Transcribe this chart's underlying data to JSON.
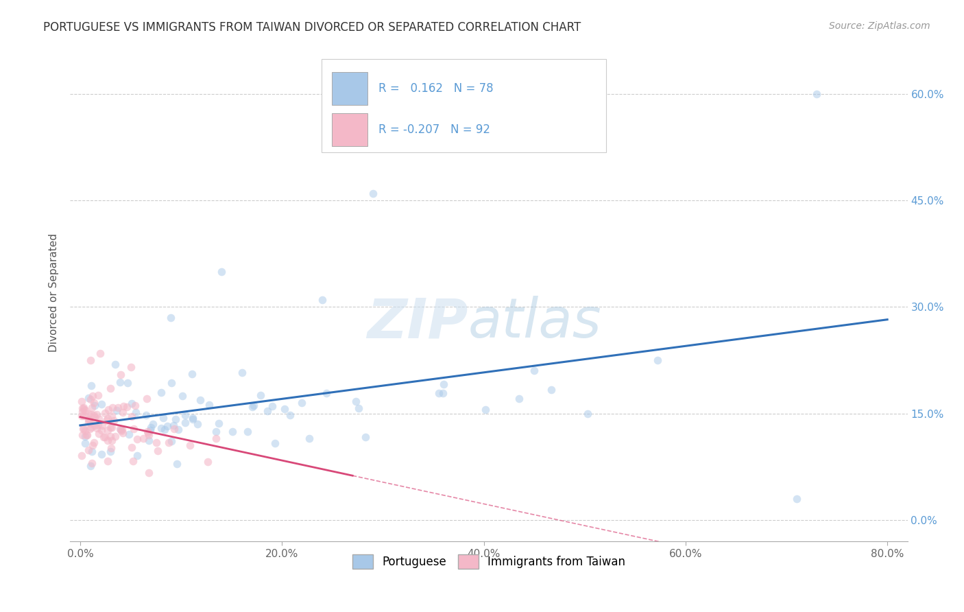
{
  "title": "PORTUGUESE VS IMMIGRANTS FROM TAIWAN DIVORCED OR SEPARATED CORRELATION CHART",
  "source": "Source: ZipAtlas.com",
  "ylabel": "Divorced or Separated",
  "blue_R": 0.162,
  "blue_N": 78,
  "pink_R": -0.207,
  "pink_N": 92,
  "blue_color": "#a8c8e8",
  "pink_color": "#f4b8c8",
  "blue_line_color": "#3070b8",
  "pink_line_color": "#d84878",
  "blue_label": "Portuguese",
  "pink_label": "Immigrants from Taiwan",
  "xlim": [
    -0.01,
    0.82
  ],
  "ylim": [
    -0.03,
    0.67
  ],
  "yticks": [
    0.0,
    0.15,
    0.3,
    0.45,
    0.6
  ],
  "xticks": [
    0.0,
    0.2,
    0.4,
    0.6,
    0.8
  ],
  "title_fontsize": 12,
  "axis_label_fontsize": 11,
  "tick_fontsize": 11,
  "source_fontsize": 10,
  "scatter_alpha": 0.5,
  "scatter_size": 70,
  "bg_color": "#ffffff",
  "grid_color": "#cccccc",
  "right_tick_color": "#5b9bd5"
}
